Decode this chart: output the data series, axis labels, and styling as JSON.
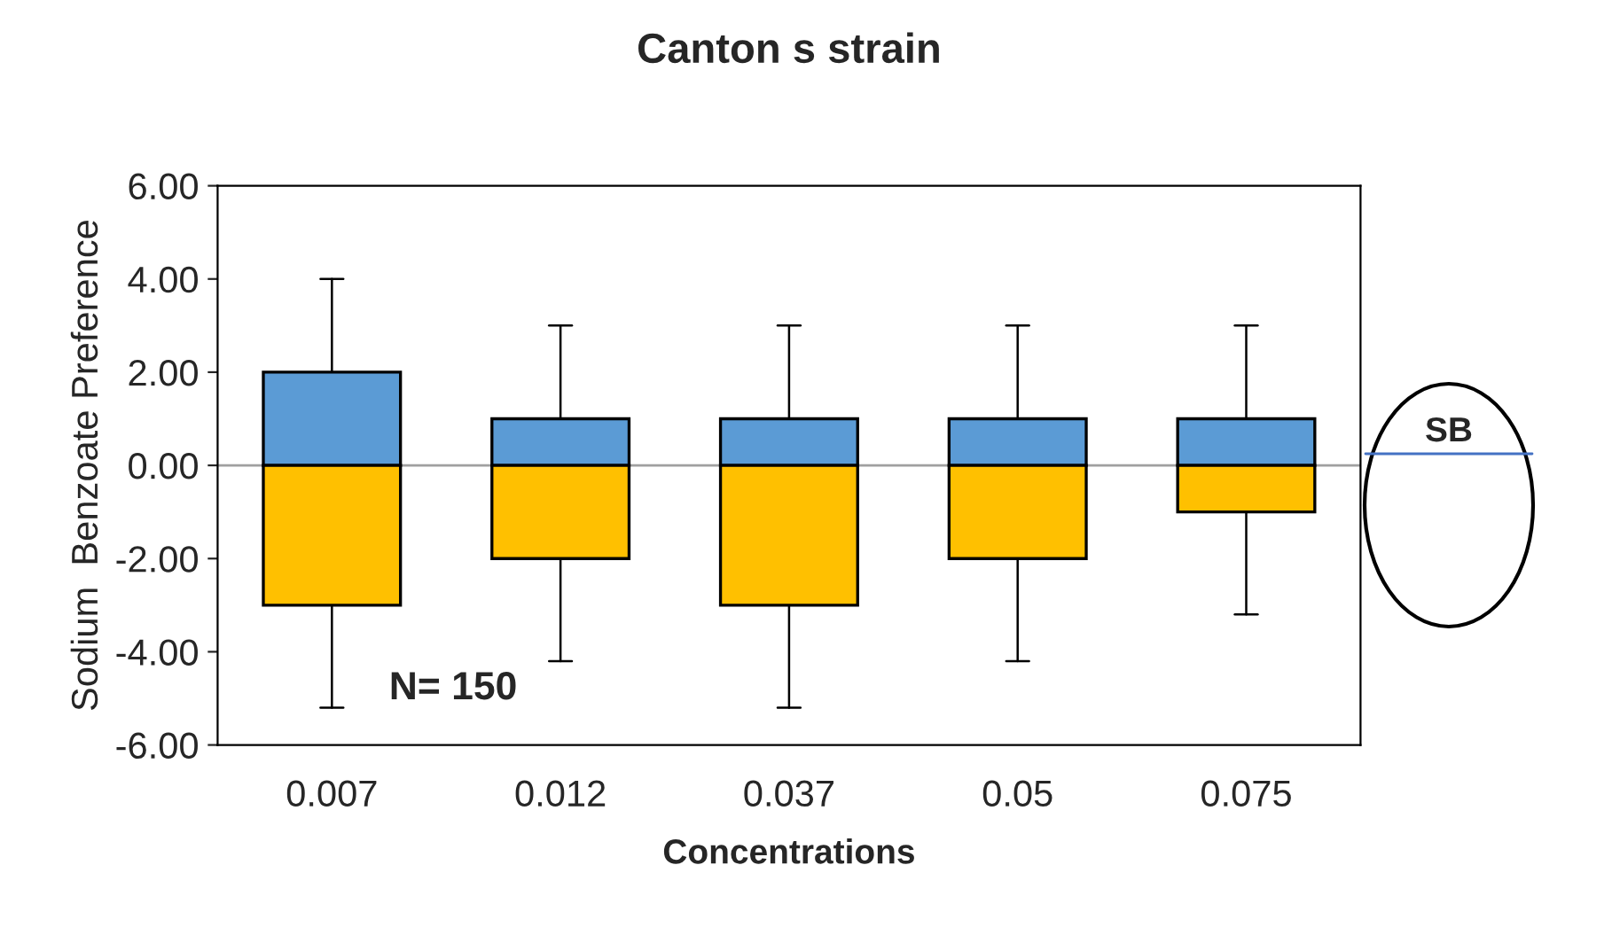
{
  "chart_data": {
    "type": "bar",
    "stacked": true,
    "title": "Canton s strain",
    "xlabel": "Concentrations",
    "ylabel": "Sodium  Benzoate Preference",
    "categories": [
      "0.007",
      "0.012",
      "0.037",
      "0.05",
      "0.075"
    ],
    "series": [
      {
        "color": "#5b9bd5",
        "values": [
          2,
          1,
          1,
          1,
          1
        ],
        "errors": [
          [
            2,
            4
          ],
          [
            1,
            3
          ],
          [
            1,
            3
          ],
          [
            1,
            3
          ],
          [
            1,
            3
          ]
        ]
      },
      {
        "color": "#ffc000",
        "values": [
          -3,
          -2,
          -3,
          -2,
          -1
        ],
        "errors": [
          [
            -5.2,
            -3
          ],
          [
            -4.2,
            -2
          ],
          [
            -5.2,
            -3
          ],
          [
            -4.2,
            -2
          ],
          [
            -3.2,
            -1
          ]
        ]
      }
    ],
    "ylim": [
      -6,
      6
    ],
    "yticks": [
      {
        "value": -6,
        "label": "-6.00"
      },
      {
        "value": -4,
        "label": "-4.00"
      },
      {
        "value": -2,
        "label": "-2.00"
      },
      {
        "value": 0,
        "label": "0.00"
      },
      {
        "value": 2,
        "label": "2.00"
      },
      {
        "value": 4,
        "label": "4.00"
      },
      {
        "value": 6,
        "label": "6.00"
      }
    ],
    "ref_lines": [
      {
        "axis": "y",
        "value": 0,
        "color": "#a0a0a0"
      }
    ],
    "annotations": [
      "N= 150",
      "SB"
    ],
    "grid": false
  }
}
